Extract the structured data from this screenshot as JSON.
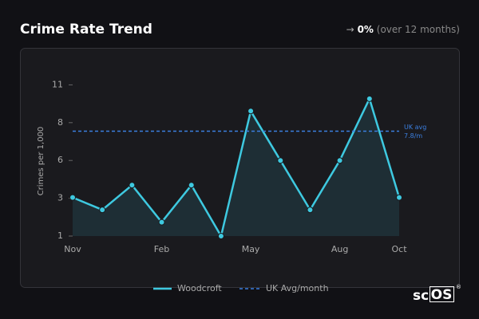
{
  "header": {
    "title": "Crime Rate Trend",
    "change_arrow": "→",
    "change_value": "0%",
    "change_period": "(over 12 months)"
  },
  "chart_data": {
    "type": "line",
    "y_label": "Crimes per 1,000",
    "categories": [
      "Nov",
      null,
      null,
      "Feb",
      null,
      null,
      "May",
      null,
      null,
      "Aug",
      null,
      "Oct"
    ],
    "series": [
      {
        "name": "Woodcroft",
        "color": "#3ec9e0",
        "values": [
          3.5,
          2.7,
          4.3,
          1.9,
          4.3,
          1.0,
          9.1,
          5.9,
          2.7,
          5.9,
          9.9,
          3.5
        ]
      }
    ],
    "reference": {
      "name": "UK Avg/month",
      "color": "#3b7fe0",
      "value": 7.8,
      "label_lines": [
        "UK avg",
        "7.8/m"
      ]
    },
    "ylim": [
      1,
      11.7
    ],
    "yticks": [
      {
        "value": 1,
        "label": "1"
      },
      {
        "value": 3.45,
        "label": "3"
      },
      {
        "value": 5.9,
        "label": "6"
      },
      {
        "value": 8.35,
        "label": "8"
      },
      {
        "value": 10.8,
        "label": "11"
      }
    ],
    "grid": false
  },
  "logo": {
    "prefix": "sc",
    "boxed": "OS",
    "mark": "®"
  }
}
